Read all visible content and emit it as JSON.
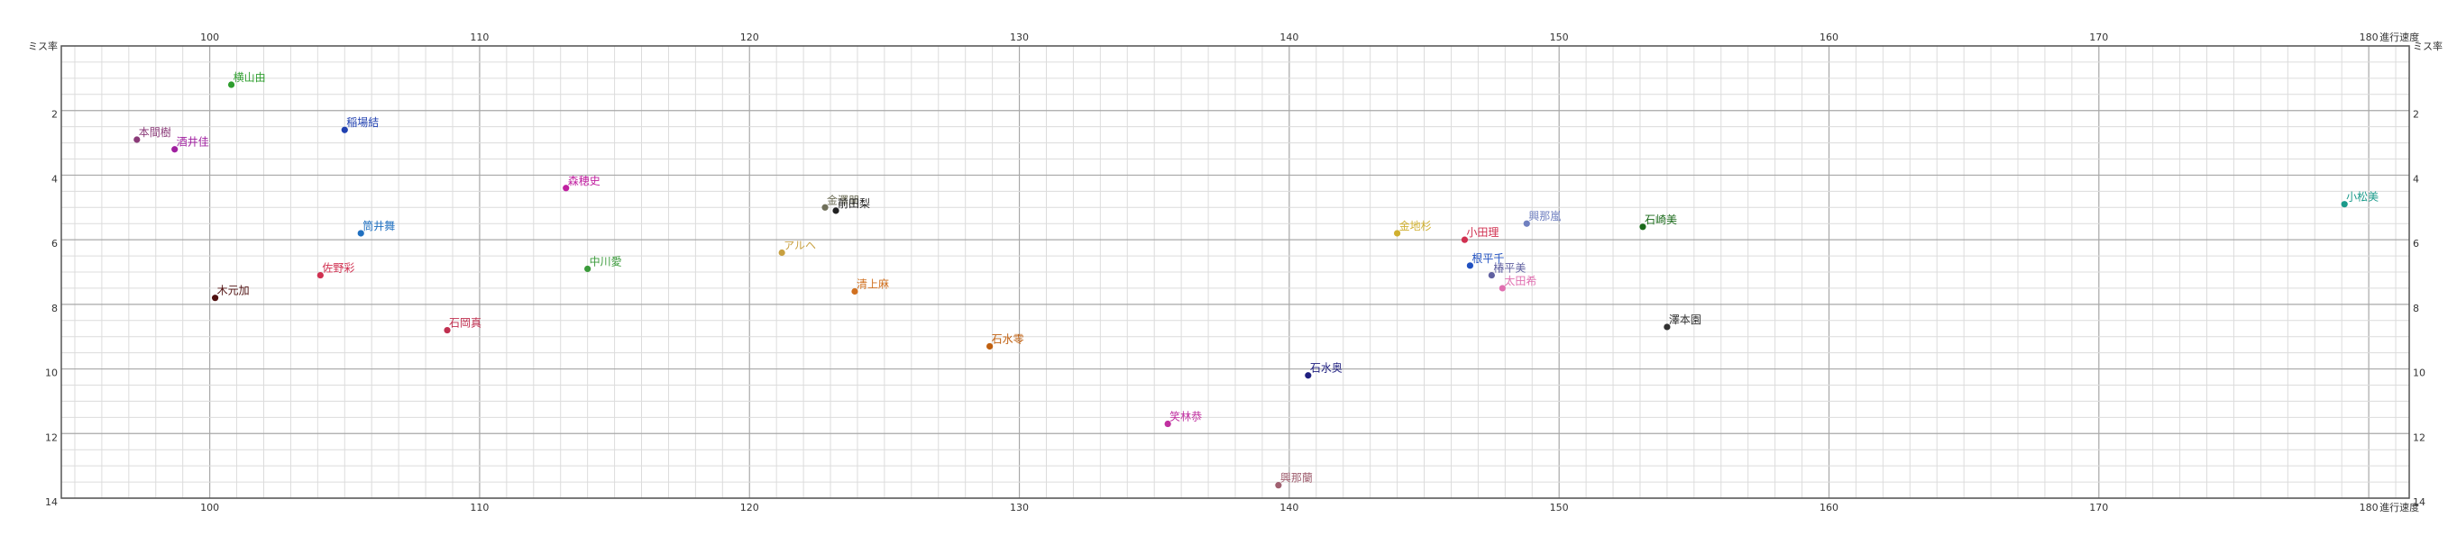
{
  "chart_data": {
    "type": "scatter",
    "xlabel": "進行速度",
    "ylabel": "ミス率",
    "xlim": [
      94.5,
      181.5
    ],
    "ylim": [
      14,
      0
    ],
    "y_inverted": true,
    "grid": true,
    "x_major_ticks": [
      100,
      110,
      120,
      130,
      140,
      150,
      160,
      170,
      180
    ],
    "y_major_ticks": [
      2,
      4,
      6,
      8,
      10,
      12,
      14
    ],
    "x_tick_labels_top": [
      "100",
      "110",
      "120",
      "130",
      "140",
      "150",
      "160",
      "170",
      "180"
    ],
    "x_tick_labels_bottom": [
      "100",
      "110",
      "120",
      "130",
      "140",
      "150",
      "160",
      "170",
      "180"
    ],
    "y_tick_labels_left": [
      "ミス率",
      "2",
      "4",
      "6",
      "8",
      "10",
      "12",
      "14"
    ],
    "y_tick_labels_right": [
      "ミス率",
      "2",
      "4",
      "6",
      "8",
      "10",
      "12",
      "14"
    ],
    "points": [
      {
        "label": "横山由",
        "x": 100.8,
        "y": 1.2,
        "color": "#2e9e2e"
      },
      {
        "label": "本間樹",
        "x": 97.3,
        "y": 2.9,
        "color": "#8a3a78"
      },
      {
        "label": "酒井佳",
        "x": 98.7,
        "y": 3.2,
        "color": "#a020a0"
      },
      {
        "label": "稲場結",
        "x": 105.0,
        "y": 2.6,
        "color": "#2040b0"
      },
      {
        "label": "森穂史",
        "x": 113.2,
        "y": 4.4,
        "color": "#c020a0"
      },
      {
        "label": "筒井舞",
        "x": 105.6,
        "y": 5.8,
        "color": "#2070c0"
      },
      {
        "label": "佐野彩",
        "x": 104.1,
        "y": 7.1,
        "color": "#d03050"
      },
      {
        "label": "木元加",
        "x": 100.2,
        "y": 7.8,
        "color": "#501010"
      },
      {
        "label": "中川愛",
        "x": 114.0,
        "y": 6.9,
        "color": "#3a9a3a"
      },
      {
        "label": "石岡真",
        "x": 108.8,
        "y": 8.8,
        "color": "#c03050"
      },
      {
        "label": "金澤朋",
        "x": 122.8,
        "y": 5.0,
        "color": "#70705a"
      },
      {
        "label": "前田梨",
        "x": 123.2,
        "y": 5.1,
        "color": "#202020"
      },
      {
        "label": "アルヘ",
        "x": 121.2,
        "y": 6.4,
        "color": "#c8a040"
      },
      {
        "label": "清上麻",
        "x": 123.9,
        "y": 7.6,
        "color": "#d07020"
      },
      {
        "label": "石水零",
        "x": 128.9,
        "y": 9.3,
        "color": "#c06010"
      },
      {
        "label": "石水奥",
        "x": 140.7,
        "y": 10.2,
        "color": "#202080"
      },
      {
        "label": "笑林恭",
        "x": 135.5,
        "y": 11.7,
        "color": "#c030a0"
      },
      {
        "label": "興那蘭",
        "x": 139.6,
        "y": 13.6,
        "color": "#a06070"
      },
      {
        "label": "金地杉",
        "x": 144.0,
        "y": 5.8,
        "color": "#d0b030"
      },
      {
        "label": "小田理",
        "x": 146.5,
        "y": 6.0,
        "color": "#d03050"
      },
      {
        "label": "興那嵐",
        "x": 148.8,
        "y": 5.5,
        "color": "#7080c0"
      },
      {
        "label": "根平千",
        "x": 146.7,
        "y": 6.8,
        "color": "#2050c0"
      },
      {
        "label": "椿平美",
        "x": 147.5,
        "y": 7.1,
        "color": "#6060a0"
      },
      {
        "label": "太田希",
        "x": 147.9,
        "y": 7.5,
        "color": "#e070b0"
      },
      {
        "label": "石崎美",
        "x": 153.1,
        "y": 5.6,
        "color": "#1a6a1a"
      },
      {
        "label": "澤本園",
        "x": 154.0,
        "y": 8.7,
        "color": "#303030"
      },
      {
        "label": "小松美",
        "x": 179.1,
        "y": 4.9,
        "color": "#1a9a8a"
      }
    ]
  }
}
